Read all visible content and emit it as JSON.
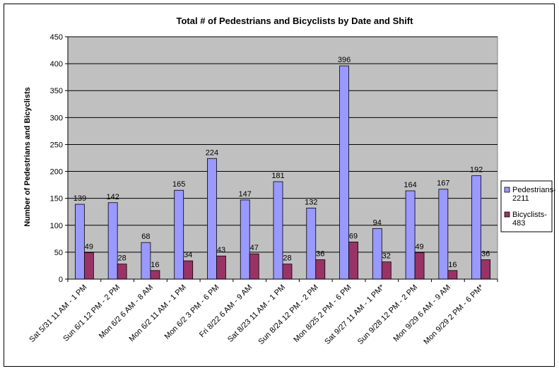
{
  "chart_data": {
    "type": "bar",
    "title": "Total # of Pedestrians and Bicyclists by Date and Shift",
    "xlabel": "",
    "ylabel": "Number of Pedestrians and Bicyclists",
    "ylim": [
      0,
      450
    ],
    "yticks": [
      0,
      50,
      100,
      150,
      200,
      250,
      300,
      350,
      400,
      450
    ],
    "grid": true,
    "legend_position": "right",
    "categories": [
      "Sat 5/31 11 AM - 1 PM",
      "Sun 6/1 12 PM - 2 PM",
      "Mon 6/2 6 AM - 8 AM",
      "Mon 6/2 11 AM - 1 PM",
      "Mon 6/2 3 PM - 6 PM",
      "Fri 8/22 6 AM - 9 AM",
      "Sat 8/23 11 AM - 1 PM",
      "Sun 8/24 12 PM - 2 PM",
      "Mon 8/25 2 PM - 6 PM",
      "Sat 9/27 11 AM - 1 PM*",
      "Sun 9/28 12 PM - 2 PM",
      "Mon 9/29 6 AM - 9 AM",
      "Mon 9/29 2 PM - 6 PM*"
    ],
    "series": [
      {
        "name": "Pedestrians-2211",
        "legend_lines": [
          "Pedestrians-",
          "2211"
        ],
        "color": "#9999ff",
        "values": [
          139,
          142,
          68,
          165,
          224,
          147,
          181,
          132,
          396,
          94,
          164,
          167,
          192
        ]
      },
      {
        "name": "Bicyclists-483",
        "legend_lines": [
          "Bicyclists-",
          "483"
        ],
        "color": "#993366",
        "values": [
          49,
          28,
          16,
          34,
          43,
          47,
          28,
          36,
          69,
          32,
          49,
          16,
          36
        ]
      }
    ],
    "plot_background": "#c0c0c0"
  }
}
